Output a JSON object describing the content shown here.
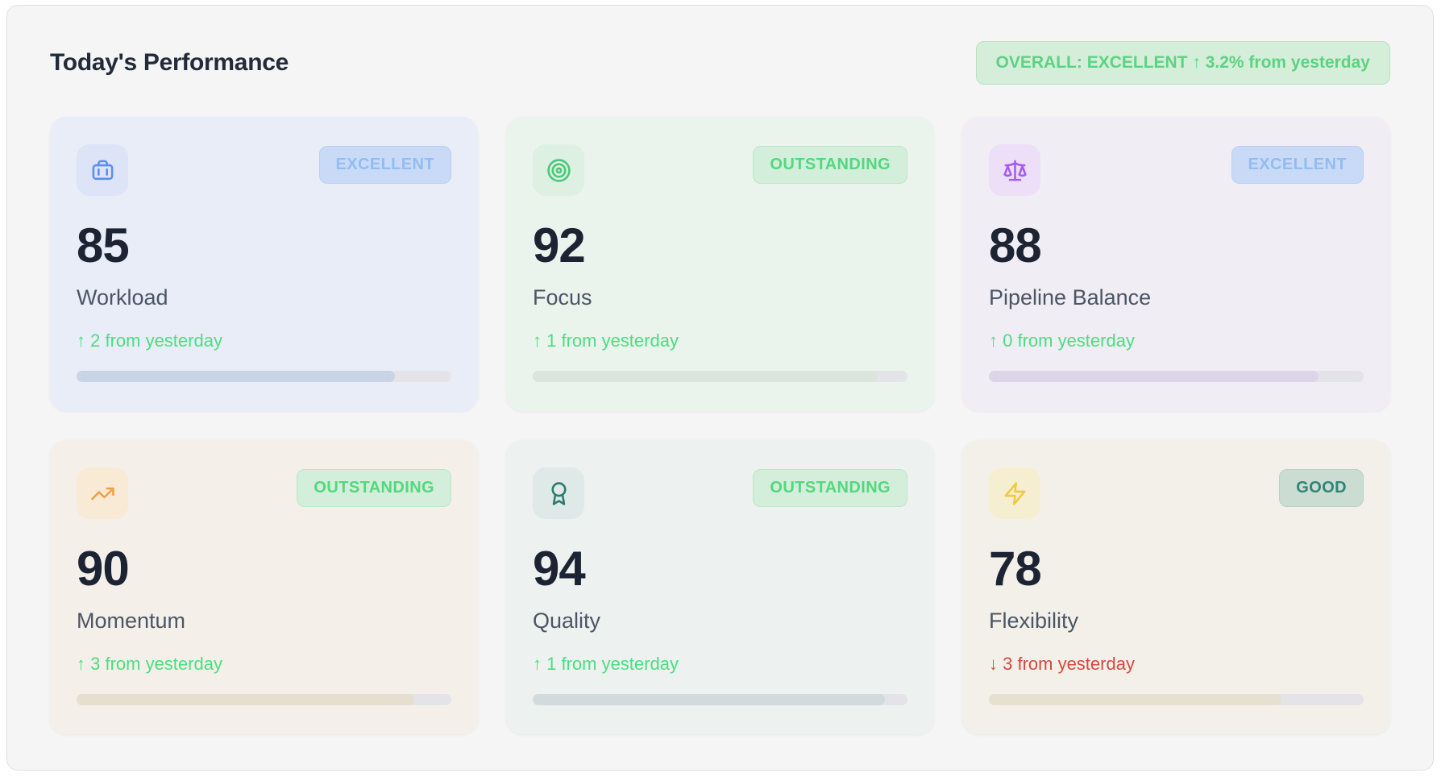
{
  "header": {
    "title": "Today's Performance",
    "overall_badge": "OVERALL: EXCELLENT ↑ 3.2% from yesterday"
  },
  "cards": [
    {
      "label": "Workload",
      "value": "85",
      "badge": "EXCELLENT",
      "delta": "↑ 2 from yesterday",
      "direction": "up",
      "progress_pct": 85,
      "icon": "briefcase-icon",
      "accent": "#5d8ef0"
    },
    {
      "label": "Focus",
      "value": "92",
      "badge": "OUTSTANDING",
      "delta": "↑ 1 from yesterday",
      "direction": "up",
      "progress_pct": 92,
      "icon": "target-icon",
      "accent": "#48c878"
    },
    {
      "label": "Pipeline Balance",
      "value": "88",
      "badge": "EXCELLENT",
      "delta": "↑ 0 from yesterday",
      "direction": "up",
      "progress_pct": 88,
      "icon": "scale-icon",
      "accent": "#a55cf2"
    },
    {
      "label": "Momentum",
      "value": "90",
      "badge": "OUTSTANDING",
      "delta": "↑ 3 from yesterday",
      "direction": "up",
      "progress_pct": 90,
      "icon": "trending-up-icon",
      "accent": "#f0a146"
    },
    {
      "label": "Quality",
      "value": "94",
      "badge": "OUTSTANDING",
      "delta": "↑ 1 from yesterday",
      "direction": "up",
      "progress_pct": 94,
      "icon": "award-icon",
      "accent": "#2e7a6e"
    },
    {
      "label": "Flexibility",
      "value": "78",
      "badge": "GOOD",
      "delta": "↓ 3 from yesterday",
      "direction": "down",
      "progress_pct": 78,
      "icon": "zap-icon",
      "accent": "#f0ca3c"
    }
  ],
  "colors": {
    "panel_bg": "#f5f5f6",
    "delta_up": "#4ade80",
    "delta_down": "#d6483f",
    "overall_badge_bg": "#d5eed9",
    "overall_badge_text": "#5bd381",
    "badge_blue_text": "#92bcf4",
    "badge_green_text": "#52d87d",
    "badge_teal_text": "#2f8577"
  }
}
